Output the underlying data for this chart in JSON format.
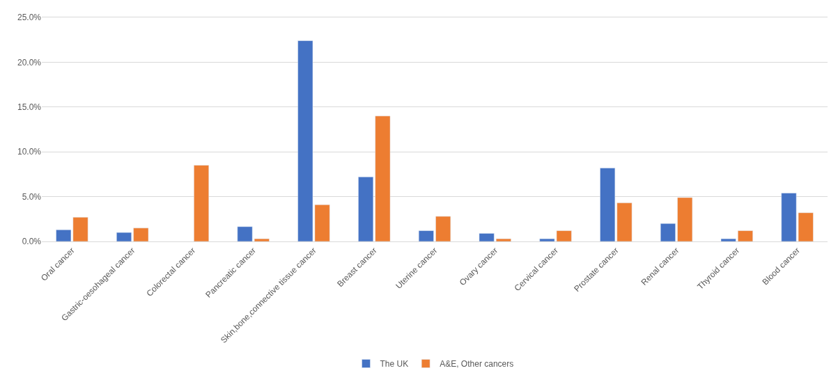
{
  "chart_data": {
    "type": "bar",
    "categories": [
      "Oral cancer",
      "Gastric-oesohageal cancer",
      "Colorectal cancer",
      "Pancreatic cancer",
      "Skin,bone,connective tissue cancer",
      "Breast cancer",
      "Uterine cancer",
      "Ovary cancer",
      "Cervical cancer",
      "Prostate cancer",
      "Renal cancer",
      "Thyroid cancer",
      "Blood cancer"
    ],
    "series": [
      {
        "name": "The UK",
        "color": "#4472c4",
        "values": [
          1.3,
          1.0,
          null,
          1.65,
          22.4,
          7.2,
          1.2,
          0.9,
          0.3,
          8.2,
          2.0,
          0.3,
          5.4
        ]
      },
      {
        "name": "A&E, Other cancers",
        "color": "#ed7d31",
        "values": [
          2.7,
          1.5,
          8.5,
          0.3,
          4.1,
          14.0,
          2.8,
          0.3,
          1.2,
          4.3,
          4.9,
          1.2,
          3.2
        ]
      }
    ],
    "ylim": [
      0,
      25
    ],
    "yticks": [
      {
        "value": 0,
        "label": "0.0%"
      },
      {
        "value": 5,
        "label": "5.0%"
      },
      {
        "value": 10,
        "label": "10.0%"
      },
      {
        "value": 15,
        "label": "15.0%"
      },
      {
        "value": 20,
        "label": "20.0%"
      },
      {
        "value": 25,
        "label": "25.0%"
      }
    ],
    "grid": "y",
    "legend": "bottom"
  }
}
